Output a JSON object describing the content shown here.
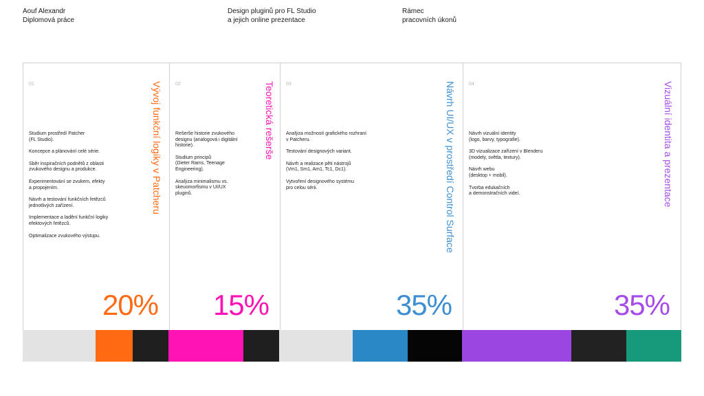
{
  "header": {
    "author": {
      "line1": "Aouf Alexandr",
      "line2": "Diplomová práce"
    },
    "topic": {
      "line1": "Design pluginů pro FL Studio",
      "line2": "a jejich online prezentace"
    },
    "frame": {
      "line1": "Rámec",
      "line2": "pracovních úkonů"
    }
  },
  "columns": [
    {
      "number": "01",
      "title": "Vývoj funkční logiky v Patcheru",
      "accent": "#ff6a13",
      "percent": "20%",
      "items": [
        "Studium prostředí Patcher\n(FL Studio).",
        "Koncepce a plánování celé série.",
        "Sběr inspiračních podnětů z oblasti\nzvukového designu a produkce.",
        "Experimentování se zvukem, efekty\na propojením.",
        "Návrh a testování funkčních řetězců\njednotlivých zařízení.",
        "Implementace a ladění funkční logiky\nefektových řetězců.",
        "Optimalizace zvukového výstupu."
      ]
    },
    {
      "number": "02",
      "title": "Teoretická rešerše",
      "accent": "#ff13b4",
      "percent": "15%",
      "items": [
        "Rešerše historie zvukového\ndesignu (analogová i digitální\nhistorie).",
        "Studium principů\n(Dieter Rams, Teenage\nEngineering).",
        "Analýza minimalismu vs.\nskeuomorfismu v UI/UX\npluginů."
      ]
    },
    {
      "number": "03",
      "title": "Návrh UI/UX v prostředí Control Surface",
      "accent": "#3d8fd1",
      "percent": "35%",
      "items": [
        "Analýza možností grafického rozhraní\nv Patcheru.",
        "Testování designových variant.",
        "Návrh a realizace pěti nástrojů\n(Vm1, Sm1, Am1, Tc1, Dc1).",
        "Vytvoření designového systému\npro celou sérii."
      ]
    },
    {
      "number": "04",
      "title": "Vizuální identita a prezentace",
      "accent": "#a64bea",
      "percent": "35%",
      "items": [
        "Návrh vizuální identity\n(logo, barvy, typografie).",
        "3D vizualizace zařízení v Blenderu\n(modely, světla, textury).",
        "Návrh webu\n(desktop + mobil).",
        "Tvorba edukačních\na demonstračních videí."
      ]
    }
  ],
  "swatches": [
    "#e3e3e3",
    "#ff6a13",
    "#1f1f1f",
    "#ff13b4",
    "#1f1f1f",
    "#e3e3e3",
    "#2b88c7",
    "#050505",
    "#9b46e0",
    "#222222",
    "#179a7b"
  ]
}
